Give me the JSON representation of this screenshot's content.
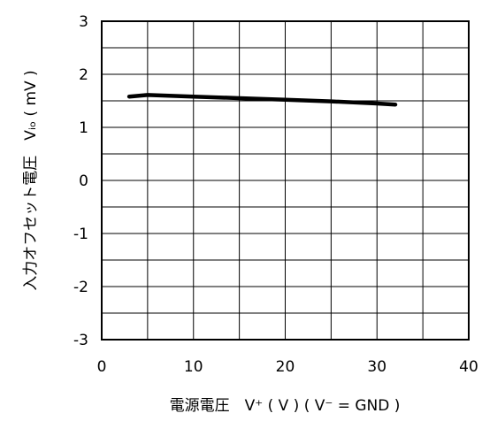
{
  "chart_data": {
    "type": "line",
    "xlabel": "電源電圧　V⁺ ( V ) ( V⁻ = GND )",
    "ylabel": "入力オフセット電圧　Vᵢₒ ( mV )",
    "xlim": [
      0,
      40
    ],
    "ylim": [
      -3,
      3
    ],
    "x_ticks": [
      "0",
      "10",
      "20",
      "30",
      "40"
    ],
    "y_ticks": [
      "3",
      "2",
      "1",
      "0",
      "-1",
      "-2",
      "-3"
    ],
    "grid": true,
    "series": [
      {
        "color": "#000000",
        "x": [
          3,
          5,
          10,
          15,
          20,
          25,
          30,
          32
        ],
        "y": [
          1.58,
          1.61,
          1.58,
          1.55,
          1.52,
          1.49,
          1.45,
          1.43
        ]
      }
    ]
  }
}
